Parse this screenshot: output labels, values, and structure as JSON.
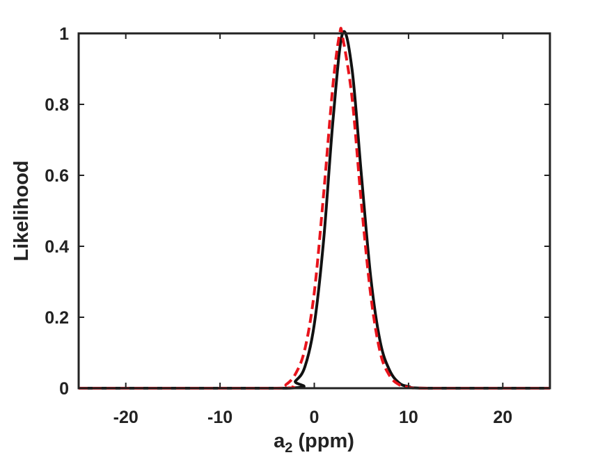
{
  "chart_data": {
    "type": "line",
    "title": "",
    "xlabel": {
      "main": "a",
      "subscript": "2",
      "rest": " (ppm)"
    },
    "ylabel": "Likelihood",
    "xlim": [
      -25,
      25
    ],
    "ylim": [
      0,
      1
    ],
    "xticks": [
      -20,
      -10,
      0,
      10,
      20
    ],
    "yticks": [
      0,
      0.2,
      0.4,
      0.6,
      0.8,
      1
    ],
    "xtick_labels": [
      "-20",
      "-10",
      "0",
      "10",
      "20"
    ],
    "ytick_labels": [
      "0",
      "0.2",
      "0.4",
      "0.6",
      "0.8",
      "1"
    ],
    "grid": false,
    "legend": "none",
    "series": [
      {
        "style": "solid",
        "color": "#111111",
        "x": [
          -25,
          -3,
          -2,
          -1,
          0,
          1,
          2,
          3,
          4,
          5,
          6,
          7,
          8,
          9,
          10,
          12,
          25
        ],
        "y": [
          0,
          0.0,
          0.02,
          0.06,
          0.18,
          0.42,
          0.76,
          1.0,
          0.9,
          0.6,
          0.31,
          0.13,
          0.05,
          0.015,
          0.005,
          0,
          0
        ]
      },
      {
        "style": "dashed",
        "color": "#e8141c",
        "x": [
          -25,
          -4,
          -3,
          -2,
          -1,
          0,
          1,
          2,
          2.7,
          3,
          4,
          5,
          6,
          7,
          8,
          9,
          10,
          12,
          25
        ],
        "y": [
          0,
          0.0,
          0.01,
          0.04,
          0.11,
          0.27,
          0.55,
          0.86,
          1.0,
          0.99,
          0.82,
          0.52,
          0.26,
          0.1,
          0.035,
          0.01,
          0.003,
          0,
          0
        ]
      }
    ]
  }
}
